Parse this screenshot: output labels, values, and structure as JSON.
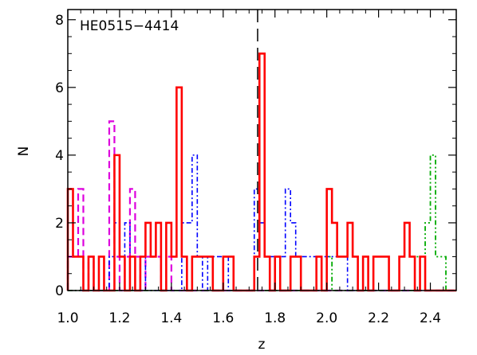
{
  "chart_data": {
    "type": "histogram",
    "title": "HE0515−4414",
    "xlabel": "z",
    "ylabel": "N",
    "xlim": [
      1.0,
      2.5
    ],
    "ylim": [
      0,
      8.3
    ],
    "xticks": [
      "1.0",
      "1.2",
      "1.4",
      "1.6",
      "1.8",
      "2.0",
      "2.2",
      "2.4"
    ],
    "yticks": [
      "0",
      "2",
      "4",
      "6",
      "8"
    ],
    "bin_width": 0.02,
    "bin_start": 1.0,
    "marker_line": {
      "x": 1.733,
      "style": "long-dash",
      "color": "#000000"
    },
    "series": [
      {
        "color": "#dd00dd",
        "style": "dashed",
        "values": [
          1,
          1,
          3,
          0,
          1,
          0,
          0,
          0,
          5,
          1,
          0,
          1,
          3,
          1,
          0,
          1,
          1,
          1,
          0,
          1,
          0,
          0,
          0,
          0,
          0,
          0,
          0,
          0,
          0,
          0,
          0,
          0,
          0,
          0,
          0,
          0,
          0,
          0,
          0,
          0,
          0,
          0,
          0,
          0,
          0,
          0,
          0,
          0,
          0,
          0,
          0,
          0,
          0,
          0,
          0,
          0,
          0,
          0,
          0,
          0,
          0,
          0,
          0,
          0,
          0,
          0,
          0,
          0,
          0,
          0,
          0,
          0,
          0,
          0,
          0
        ]
      },
      {
        "color": "#0000ff",
        "style": "dash-dot",
        "values": [
          0,
          0,
          0,
          0,
          0,
          0,
          0,
          0,
          1,
          2,
          1,
          2,
          0,
          0,
          1,
          0,
          0,
          0,
          0,
          0,
          0,
          0,
          2,
          2,
          4,
          1,
          0,
          1,
          1,
          1,
          1,
          0,
          0,
          0,
          0,
          0,
          3,
          2,
          1,
          1,
          1,
          1,
          3,
          2,
          1,
          1,
          1,
          1,
          1,
          1,
          1,
          1,
          1,
          1,
          0,
          0,
          0,
          0,
          0,
          0,
          0,
          0,
          0,
          0,
          0,
          0,
          0,
          0,
          0,
          0,
          0,
          0,
          0,
          0,
          0
        ]
      },
      {
        "color": "#00aa00",
        "style": "dash-dot-dot",
        "values": [
          0,
          0,
          0,
          0,
          0,
          0,
          0,
          0,
          0,
          0,
          0,
          0,
          0,
          0,
          0,
          0,
          0,
          0,
          0,
          0,
          0,
          0,
          0,
          0,
          0,
          0,
          0,
          0,
          0,
          0,
          0,
          0,
          0,
          0,
          0,
          0,
          0,
          0,
          0,
          0,
          0,
          0,
          0,
          0,
          0,
          0,
          0,
          0,
          0,
          0,
          1,
          0,
          0,
          0,
          0,
          0,
          0,
          0,
          0,
          0,
          0,
          0,
          0,
          0,
          0,
          0,
          0,
          1,
          1,
          2,
          4,
          1,
          1,
          0,
          0
        ]
      },
      {
        "color": "#ff0000",
        "style": "solid",
        "values": [
          3,
          1,
          1,
          0,
          1,
          0,
          1,
          0,
          0,
          4,
          1,
          0,
          1,
          0,
          1,
          2,
          1,
          2,
          0,
          2,
          1,
          6,
          1,
          0,
          1,
          1,
          1,
          1,
          0,
          0,
          1,
          1,
          0,
          0,
          0,
          0,
          1,
          7,
          1,
          0,
          1,
          0,
          0,
          1,
          1,
          0,
          0,
          0,
          1,
          0,
          3,
          2,
          1,
          1,
          2,
          1,
          0,
          1,
          0,
          1,
          1,
          1,
          0,
          0,
          1,
          2,
          1,
          0,
          1,
          0,
          0,
          0,
          0,
          0,
          0
        ]
      }
    ]
  }
}
